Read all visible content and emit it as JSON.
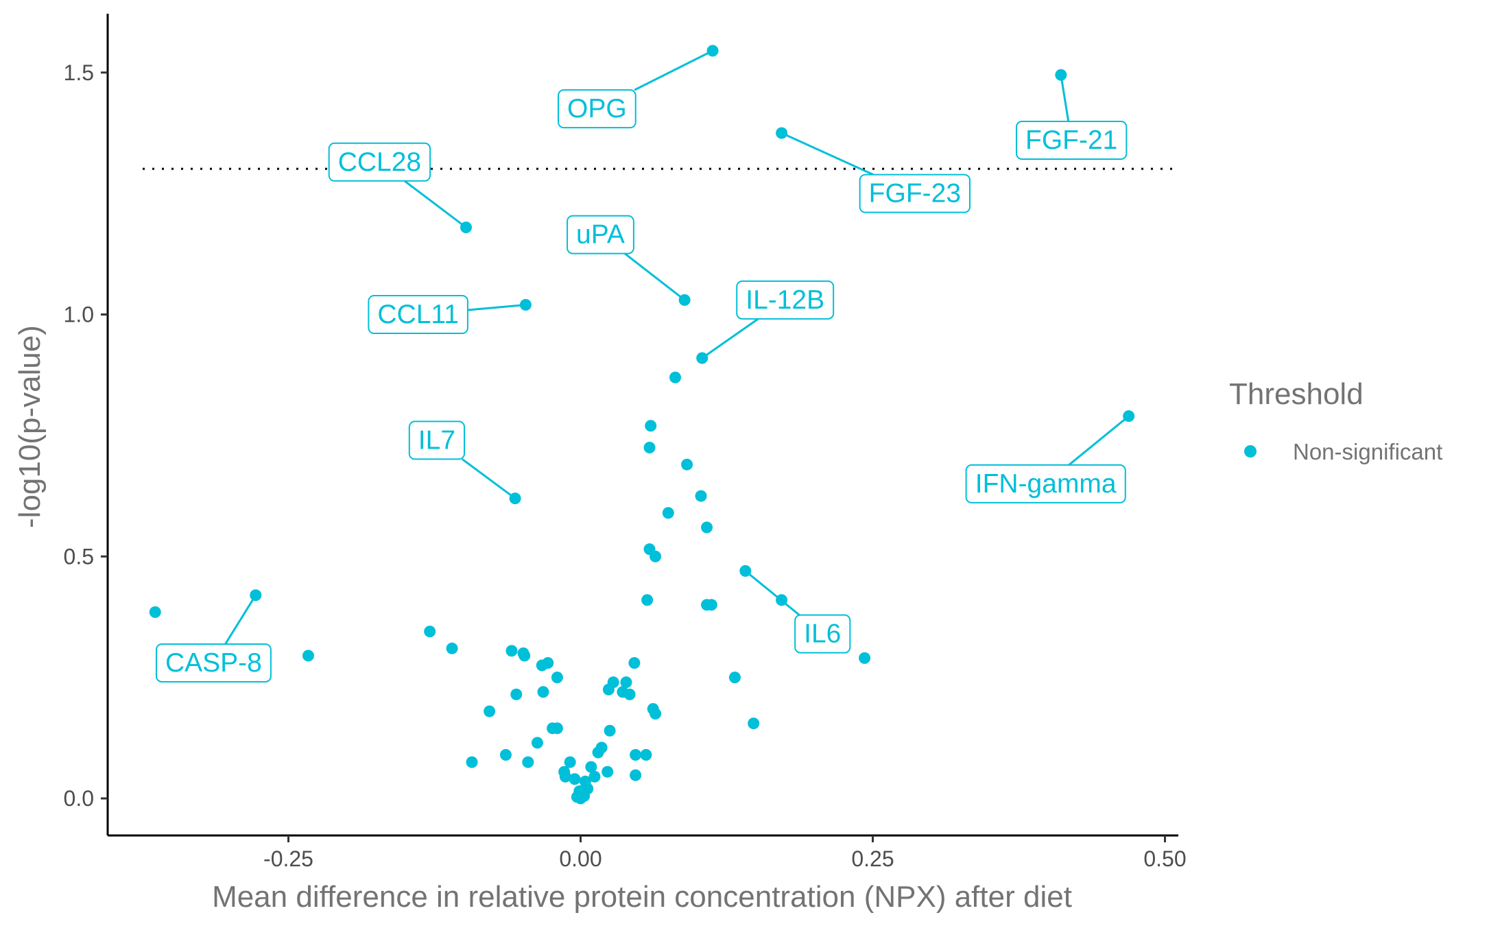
{
  "chart_data": {
    "type": "scatter",
    "title": "",
    "xlabel": "Mean difference in relative protein concentration (NPX) after diet",
    "ylabel": "-log10(p-value)",
    "xlim": [
      -0.41,
      0.51
    ],
    "ylim": [
      -0.08,
      1.62
    ],
    "x_ticks": [
      -0.25,
      0.0,
      0.25,
      0.5
    ],
    "x_tick_labels": [
      "-0.25",
      "0.00",
      "0.25",
      "0.50"
    ],
    "y_ticks": [
      0.0,
      0.5,
      1.0,
      1.5
    ],
    "y_tick_labels": [
      "0.0",
      "0.5",
      "1.0",
      "1.5"
    ],
    "grid": false,
    "threshold_line": {
      "y": 1.301,
      "style": "dotted",
      "color": "#000000"
    },
    "point_color": "#00BFD8",
    "legend": {
      "title": "Threshold",
      "placement": "right",
      "items": [
        {
          "label": "Non-significant",
          "color": "#00BFD8"
        }
      ]
    },
    "series": [
      {
        "name": "Non-significant",
        "points": [
          {
            "x": 0.113,
            "y": 1.545
          },
          {
            "x": 0.411,
            "y": 1.495
          },
          {
            "x": 0.172,
            "y": 1.375
          },
          {
            "x": -0.098,
            "y": 1.18
          },
          {
            "x": 0.089,
            "y": 1.03
          },
          {
            "x": -0.047,
            "y": 1.02
          },
          {
            "x": 0.104,
            "y": 0.91
          },
          {
            "x": 0.081,
            "y": 0.87
          },
          {
            "x": 0.469,
            "y": 0.79
          },
          {
            "x": 0.06,
            "y": 0.77
          },
          {
            "x": 0.059,
            "y": 0.725
          },
          {
            "x": 0.091,
            "y": 0.69
          },
          {
            "x": 0.103,
            "y": 0.625
          },
          {
            "x": -0.056,
            "y": 0.62
          },
          {
            "x": 0.075,
            "y": 0.59
          },
          {
            "x": 0.108,
            "y": 0.56
          },
          {
            "x": 0.059,
            "y": 0.515
          },
          {
            "x": 0.064,
            "y": 0.5
          },
          {
            "x": 0.141,
            "y": 0.47
          },
          {
            "x": -0.278,
            "y": 0.42
          },
          {
            "x": 0.172,
            "y": 0.41
          },
          {
            "x": 0.057,
            "y": 0.41
          },
          {
            "x": 0.108,
            "y": 0.4
          },
          {
            "x": 0.112,
            "y": 0.4
          },
          {
            "x": -0.364,
            "y": 0.385
          },
          {
            "x": -0.129,
            "y": 0.345
          },
          {
            "x": -0.11,
            "y": 0.31
          },
          {
            "x": -0.059,
            "y": 0.305
          },
          {
            "x": -0.049,
            "y": 0.3
          },
          {
            "x": -0.048,
            "y": 0.295
          },
          {
            "x": -0.233,
            "y": 0.295
          },
          {
            "x": 0.243,
            "y": 0.29
          },
          {
            "x": -0.033,
            "y": 0.275
          },
          {
            "x": -0.028,
            "y": 0.28
          },
          {
            "x": 0.046,
            "y": 0.28
          },
          {
            "x": -0.02,
            "y": 0.25
          },
          {
            "x": 0.132,
            "y": 0.25
          },
          {
            "x": 0.028,
            "y": 0.24
          },
          {
            "x": 0.039,
            "y": 0.24
          },
          {
            "x": 0.024,
            "y": 0.225
          },
          {
            "x": 0.036,
            "y": 0.22
          },
          {
            "x": 0.042,
            "y": 0.215
          },
          {
            "x": -0.055,
            "y": 0.215
          },
          {
            "x": -0.032,
            "y": 0.22
          },
          {
            "x": 0.062,
            "y": 0.185
          },
          {
            "x": -0.078,
            "y": 0.18
          },
          {
            "x": 0.064,
            "y": 0.175
          },
          {
            "x": 0.148,
            "y": 0.155
          },
          {
            "x": -0.024,
            "y": 0.145
          },
          {
            "x": -0.02,
            "y": 0.145
          },
          {
            "x": 0.025,
            "y": 0.14
          },
          {
            "x": -0.037,
            "y": 0.115
          },
          {
            "x": 0.018,
            "y": 0.105
          },
          {
            "x": 0.015,
            "y": 0.095
          },
          {
            "x": 0.047,
            "y": 0.09
          },
          {
            "x": 0.056,
            "y": 0.09
          },
          {
            "x": -0.064,
            "y": 0.09
          },
          {
            "x": -0.093,
            "y": 0.075
          },
          {
            "x": -0.045,
            "y": 0.075
          },
          {
            "x": -0.009,
            "y": 0.075
          },
          {
            "x": 0.009,
            "y": 0.065
          },
          {
            "x": -0.014,
            "y": 0.055
          },
          {
            "x": 0.023,
            "y": 0.055
          },
          {
            "x": -0.013,
            "y": 0.045
          },
          {
            "x": 0.047,
            "y": 0.048
          },
          {
            "x": 0.012,
            "y": 0.045
          },
          {
            "x": -0.005,
            "y": 0.04
          },
          {
            "x": 0.004,
            "y": 0.035
          },
          {
            "x": 0.006,
            "y": 0.02
          },
          {
            "x": -0.001,
            "y": 0.015
          },
          {
            "x": 0.001,
            "y": 0.01
          },
          {
            "x": 0.003,
            "y": 0.005
          },
          {
            "x": -0.003,
            "y": 0.003
          },
          {
            "x": 0.0,
            "y": 0.0
          }
        ]
      }
    ],
    "annotations": [
      {
        "text": "OPG",
        "x": 0.113,
        "y": 1.545,
        "lx": 0.014,
        "ly": 1.425
      },
      {
        "text": "FGF-21",
        "x": 0.411,
        "y": 1.495,
        "lx": 0.42,
        "ly": 1.36
      },
      {
        "text": "CCL28",
        "x": -0.098,
        "y": 1.18,
        "lx": -0.172,
        "ly": 1.315
      },
      {
        "text": "FGF-23",
        "x": 0.172,
        "y": 1.375,
        "lx": 0.286,
        "ly": 1.25
      },
      {
        "text": "uPA",
        "x": 0.089,
        "y": 1.03,
        "lx": 0.017,
        "ly": 1.165
      },
      {
        "text": "IL-12B",
        "x": 0.104,
        "y": 0.91,
        "lx": 0.175,
        "ly": 1.03
      },
      {
        "text": "CCL11",
        "x": -0.047,
        "y": 1.02,
        "lx": -0.139,
        "ly": 1.0
      },
      {
        "text": "IL7",
        "x": -0.056,
        "y": 0.62,
        "lx": -0.123,
        "ly": 0.74
      },
      {
        "text": "IFN-gamma",
        "x": 0.469,
        "y": 0.79,
        "lx": 0.398,
        "ly": 0.65
      },
      {
        "text": "IL6",
        "x": 0.141,
        "y": 0.47,
        "lx": 0.207,
        "ly": 0.34
      },
      {
        "text": "CASP-8",
        "x": -0.278,
        "y": 0.42,
        "lx": -0.314,
        "ly": 0.28
      }
    ]
  }
}
